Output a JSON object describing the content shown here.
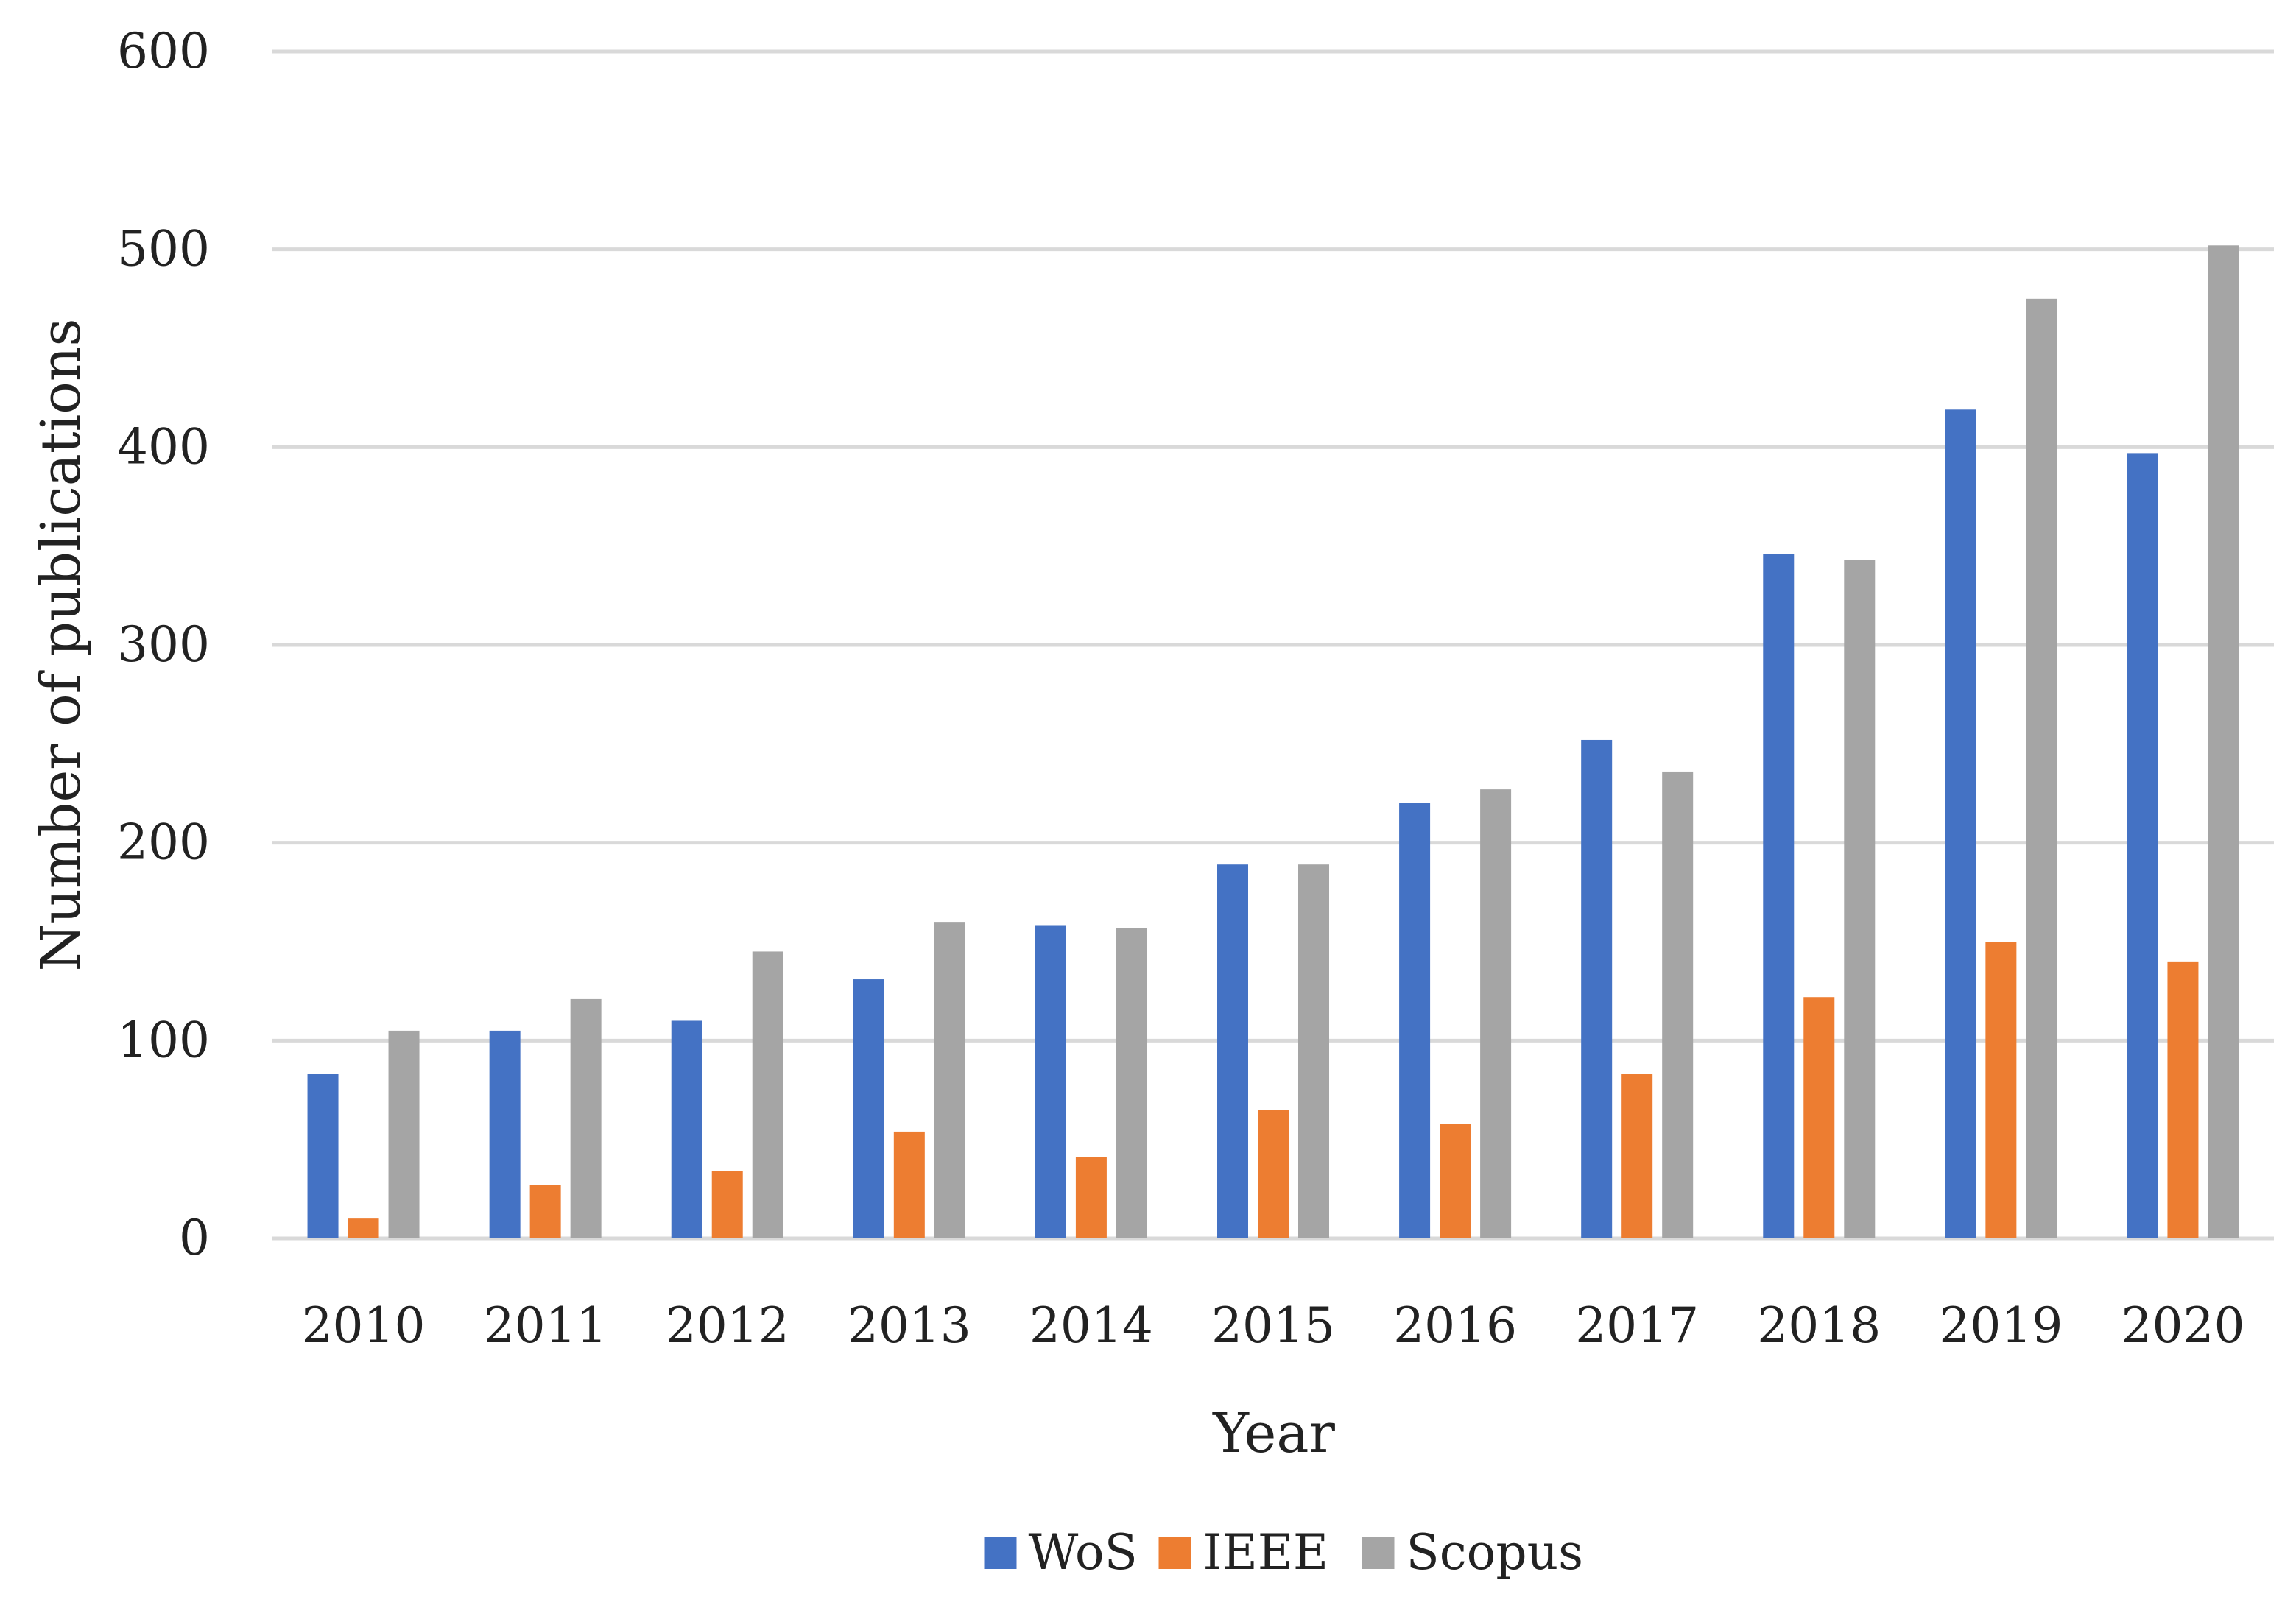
{
  "chart_data": {
    "type": "bar",
    "title": "",
    "xlabel": "Year",
    "ylabel": "Number of publications",
    "ylim": [
      0,
      600
    ],
    "yticks": [
      0,
      100,
      200,
      300,
      400,
      500,
      600
    ],
    "grid": true,
    "legend_position": "bottom",
    "categories": [
      "2010",
      "2011",
      "2012",
      "2013",
      "2014",
      "2015",
      "2016",
      "2017",
      "2018",
      "2019",
      "2020"
    ],
    "series": [
      {
        "name": "WoS",
        "color": "#4472C4",
        "values": [
          83,
          105,
          110,
          131,
          158,
          189,
          220,
          252,
          346,
          419,
          397
        ]
      },
      {
        "name": "IEEE",
        "color": "#ED7D31",
        "values": [
          10,
          27,
          34,
          54,
          41,
          65,
          58,
          83,
          122,
          150,
          140
        ]
      },
      {
        "name": "Scopus",
        "color": "#A5A5A5",
        "values": [
          105,
          121,
          145,
          160,
          157,
          189,
          227,
          236,
          343,
          475,
          502
        ]
      }
    ]
  }
}
